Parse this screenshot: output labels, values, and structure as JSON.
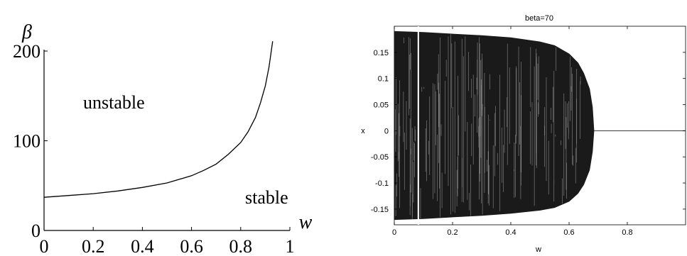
{
  "chart_data": [
    {
      "type": "line",
      "title": "",
      "xlabel": "w",
      "ylabel": "β",
      "xlim": [
        0,
        1
      ],
      "ylim": [
        0,
        210
      ],
      "x_ticks": [
        "0",
        "0.2",
        "0.4",
        "0.6",
        "0.8",
        "1"
      ],
      "y_ticks": [
        "0",
        "100",
        "200"
      ],
      "annotations": [
        "unstable",
        "stable"
      ],
      "series": [
        {
          "x": [
            0,
            0.1,
            0.2,
            0.3,
            0.4,
            0.5,
            0.6,
            0.65,
            0.7,
            0.75,
            0.8,
            0.83,
            0.86,
            0.88,
            0.9,
            0.915,
            0.93
          ],
          "y": [
            37,
            39,
            41,
            44,
            48,
            53,
            61,
            67,
            74,
            85,
            98,
            110,
            126,
            142,
            161,
            182,
            211
          ]
        }
      ]
    },
    {
      "type": "scatter",
      "title": "beta=70",
      "xlabel": "w",
      "ylabel": "x",
      "xlim": [
        0,
        1
      ],
      "ylim": [
        -0.18,
        0.2
      ],
      "x_ticks": [
        "0",
        "0.2",
        "0.4",
        "0.6",
        "0.8"
      ],
      "y_ticks": [
        "0.15",
        "0.1",
        "0.05",
        "0",
        "-0.05",
        "-0.1",
        "-0.15"
      ],
      "envelope": {
        "w": [
          0,
          0.1,
          0.2,
          0.3,
          0.4,
          0.5,
          0.55,
          0.6,
          0.63,
          0.65,
          0.67,
          0.68,
          0.685
        ],
        "upper": [
          0.19,
          0.188,
          0.185,
          0.182,
          0.178,
          0.17,
          0.163,
          0.147,
          0.13,
          0.11,
          0.08,
          0.045,
          0
        ],
        "lower": [
          -0.17,
          -0.168,
          -0.165,
          -0.162,
          -0.158,
          -0.152,
          -0.147,
          -0.135,
          -0.12,
          -0.103,
          -0.075,
          -0.04,
          0
        ]
      },
      "gap_w": [
        0.08,
        0.085
      ],
      "fixed_point": {
        "w_from": 0.685,
        "w_to": 1,
        "x": 0
      }
    }
  ]
}
